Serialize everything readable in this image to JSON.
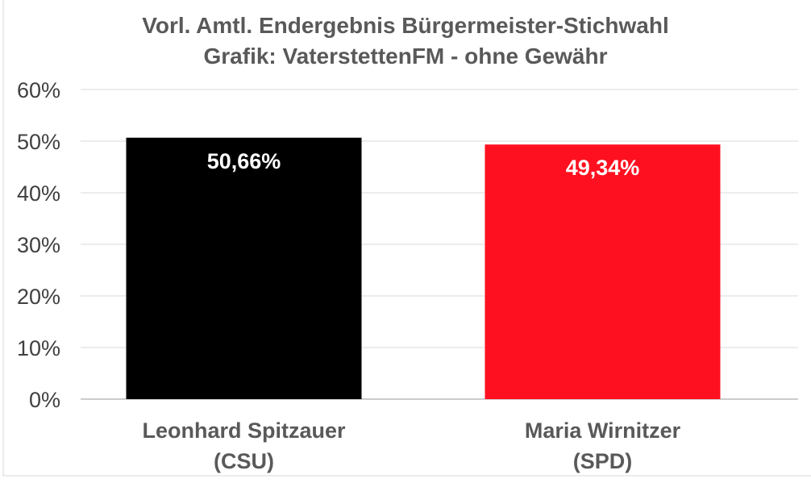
{
  "chart_data": {
    "type": "bar",
    "title": "Vorl. Amtl. Endergebnis Bürgermeister-Stichwahl",
    "subtitle": "Grafik: VaterstettenFM - ohne Gewähr",
    "categories": [
      [
        "Leonhard Spitzauer",
        "(CSU)"
      ],
      [
        "Maria Wirnitzer",
        "(SPD)"
      ]
    ],
    "values": [
      50.66,
      49.34
    ],
    "data_labels": [
      "50,66%",
      "49,34%"
    ],
    "colors": [
      "#000000",
      "#ff1020"
    ],
    "ylim": [
      0,
      60
    ],
    "yticks": [
      {
        "value": 0,
        "label": "0%"
      },
      {
        "value": 10,
        "label": "10%"
      },
      {
        "value": 20,
        "label": "20%"
      },
      {
        "value": 30,
        "label": "30%"
      },
      {
        "value": 40,
        "label": "40%"
      },
      {
        "value": 50,
        "label": "50%"
      },
      {
        "value": 60,
        "label": "60%"
      }
    ],
    "grid": true,
    "legend": "none"
  }
}
